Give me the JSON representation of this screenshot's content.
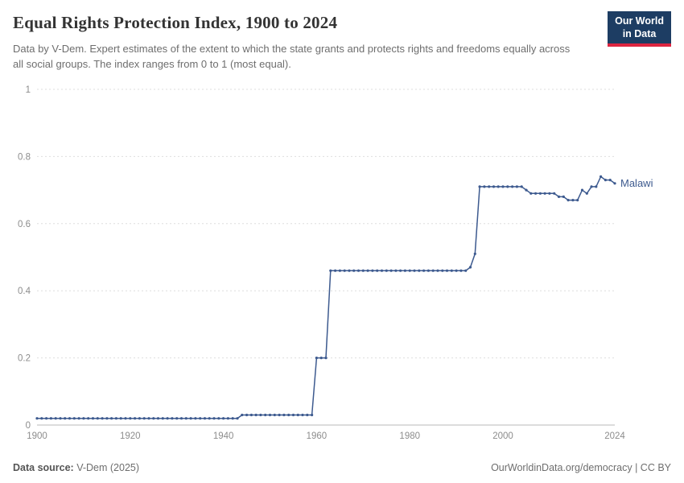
{
  "header": {
    "title": "Equal Rights Protection Index, 1900 to 2024",
    "subtitle": "Data by V-Dem. Expert estimates of the extent to which the state grants and protects rights and freedoms equally across all social groups. The index ranges from 0 to 1 (most equal).",
    "logo": {
      "line1": "Our World",
      "line2": "in Data",
      "bg_color": "#1d3d63",
      "accent_color": "#dc2540"
    }
  },
  "chart_data": {
    "type": "line",
    "title": "Equal Rights Protection Index, 1900 to 2024",
    "xlabel": "",
    "ylabel": "",
    "xlim": [
      1900,
      2024
    ],
    "ylim": [
      0,
      1
    ],
    "x_ticks": [
      1900,
      1920,
      1940,
      1960,
      1980,
      2000,
      2024
    ],
    "y_ticks": [
      0,
      0.2,
      0.4,
      0.6,
      0.8,
      1
    ],
    "grid": "dashed-horizontal",
    "legend_position": "end-of-line-label",
    "x_start_year": 1900,
    "series": [
      {
        "name": "Malawi",
        "color": "#3d5a8f",
        "values": [
          0.02,
          0.02,
          0.02,
          0.02,
          0.02,
          0.02,
          0.02,
          0.02,
          0.02,
          0.02,
          0.02,
          0.02,
          0.02,
          0.02,
          0.02,
          0.02,
          0.02,
          0.02,
          0.02,
          0.02,
          0.02,
          0.02,
          0.02,
          0.02,
          0.02,
          0.02,
          0.02,
          0.02,
          0.02,
          0.02,
          0.02,
          0.02,
          0.02,
          0.02,
          0.02,
          0.02,
          0.02,
          0.02,
          0.02,
          0.02,
          0.02,
          0.02,
          0.02,
          0.02,
          0.03,
          0.03,
          0.03,
          0.03,
          0.03,
          0.03,
          0.03,
          0.03,
          0.03,
          0.03,
          0.03,
          0.03,
          0.03,
          0.03,
          0.03,
          0.03,
          0.2,
          0.2,
          0.2,
          0.46,
          0.46,
          0.46,
          0.46,
          0.46,
          0.46,
          0.46,
          0.46,
          0.46,
          0.46,
          0.46,
          0.46,
          0.46,
          0.46,
          0.46,
          0.46,
          0.46,
          0.46,
          0.46,
          0.46,
          0.46,
          0.46,
          0.46,
          0.46,
          0.46,
          0.46,
          0.46,
          0.46,
          0.46,
          0.46,
          0.47,
          0.51,
          0.71,
          0.71,
          0.71,
          0.71,
          0.71,
          0.71,
          0.71,
          0.71,
          0.71,
          0.71,
          0.7,
          0.69,
          0.69,
          0.69,
          0.69,
          0.69,
          0.69,
          0.68,
          0.68,
          0.67,
          0.67,
          0.67,
          0.7,
          0.69,
          0.71,
          0.71,
          0.74,
          0.73,
          0.73,
          0.72
        ]
      }
    ]
  },
  "footer": {
    "source_label": "Data source:",
    "source_value": " V-Dem (2025)",
    "right": "OurWorldinData.org/democracy | CC BY"
  }
}
